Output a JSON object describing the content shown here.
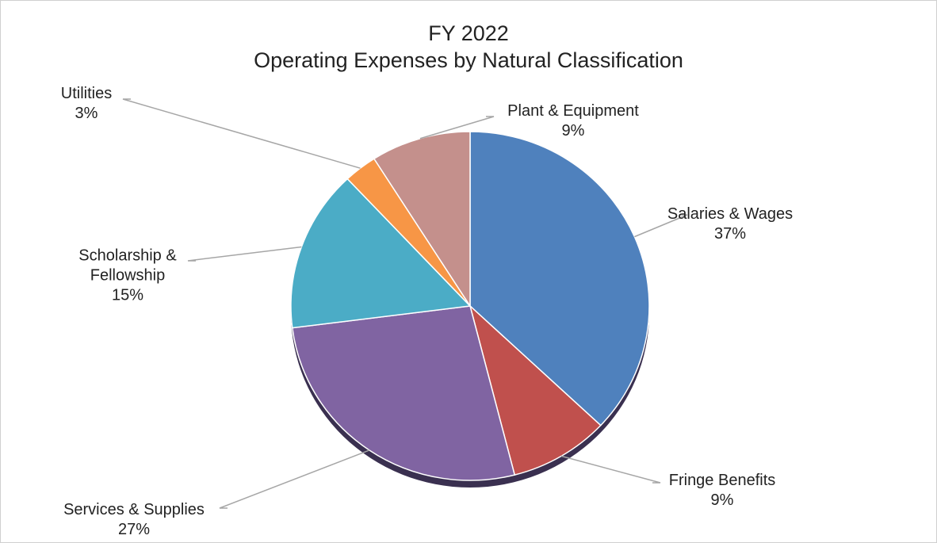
{
  "chart_data": {
    "type": "pie",
    "title": [
      "FY 2022",
      "Operating Expenses by Natural Classification"
    ],
    "categories": [
      "Salaries & Wages",
      "Fringe Benefits",
      "Services & Supplies",
      "Scholarship & Fellowship",
      "Utilities",
      "Plant & Equipment"
    ],
    "values": [
      37,
      9,
      27,
      15,
      3,
      9
    ],
    "value_labels": [
      "37%",
      "9%",
      "27%",
      "15%",
      "3%",
      "9%"
    ],
    "colors": [
      "#4f81bd",
      "#c0504d",
      "#8064a2",
      "#4bacc6",
      "#f79646",
      "#c4908c"
    ]
  }
}
